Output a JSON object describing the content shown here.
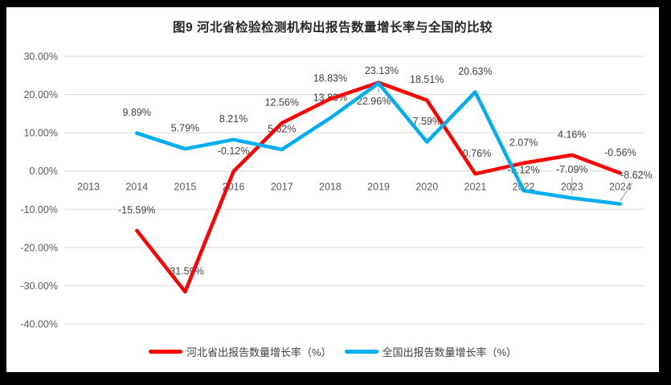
{
  "frame": {
    "background_color": "#000000",
    "panel_color": "#FFFFFF"
  },
  "chart_data": {
    "type": "line",
    "title": "图9 河北省检验检测机构出报告数量增长率与全国的比较",
    "categories": [
      "2013",
      "2014",
      "2015",
      "2016",
      "2017",
      "2018",
      "2019",
      "2020",
      "2021",
      "2022",
      "2023",
      "2024"
    ],
    "series": [
      {
        "name": "河北省出报告数量增长率（%）",
        "color": "#FF0000",
        "values": [
          null,
          -15.59,
          -31.59,
          -0.12,
          12.56,
          18.83,
          23.13,
          18.51,
          -0.76,
          2.07,
          4.16,
          -0.56
        ],
        "labels": [
          "",
          "-15.59%",
          "-31.59%",
          "-0.12%",
          "12.56%",
          "18.83%",
          "23.13%",
          "18.51%",
          "-0.76%",
          "2.07%",
          "4.16%",
          "-0.56%"
        ],
        "label_overrides": {
          "2019": {
            "dx": 4,
            "dy": -15
          }
        }
      },
      {
        "name": "全国出报告数量增长率（%）",
        "color": "#00AEEF",
        "values": [
          null,
          9.89,
          5.79,
          8.21,
          5.62,
          13.83,
          22.96,
          7.59,
          20.63,
          -5.12,
          -7.09,
          -8.62
        ],
        "labels": [
          "",
          "9.89%",
          "5.79%",
          "8.21%",
          "5.62%",
          "13.83%",
          "22.96%",
          "7.59%",
          "20.63%",
          "-5.12%",
          "-7.09%",
          "-8.62%"
        ],
        "label_overrides": {
          "2019": {
            "dx": -6,
            "dy": 22,
            "leader": "v"
          },
          "2023": {
            "dy": -36,
            "leader": "v"
          },
          "2024": {
            "dx": 20,
            "dy": -36,
            "leader": "d"
          }
        }
      }
    ],
    "ylim": [
      -40,
      30
    ],
    "ytick_step": 10,
    "ytick_labels": [
      "30.00%",
      "20.00%",
      "10.00%",
      "0.00%",
      "-10.00%",
      "-20.00%",
      "-30.00%",
      "-40.00%"
    ],
    "grid": true,
    "legend_position": "bottom",
    "colors": {
      "grid": "#D9D9D9",
      "axis_text": "#595959",
      "data_label_text": "#404040",
      "leader": "#A6A6A6",
      "title_text": "#262626"
    }
  }
}
